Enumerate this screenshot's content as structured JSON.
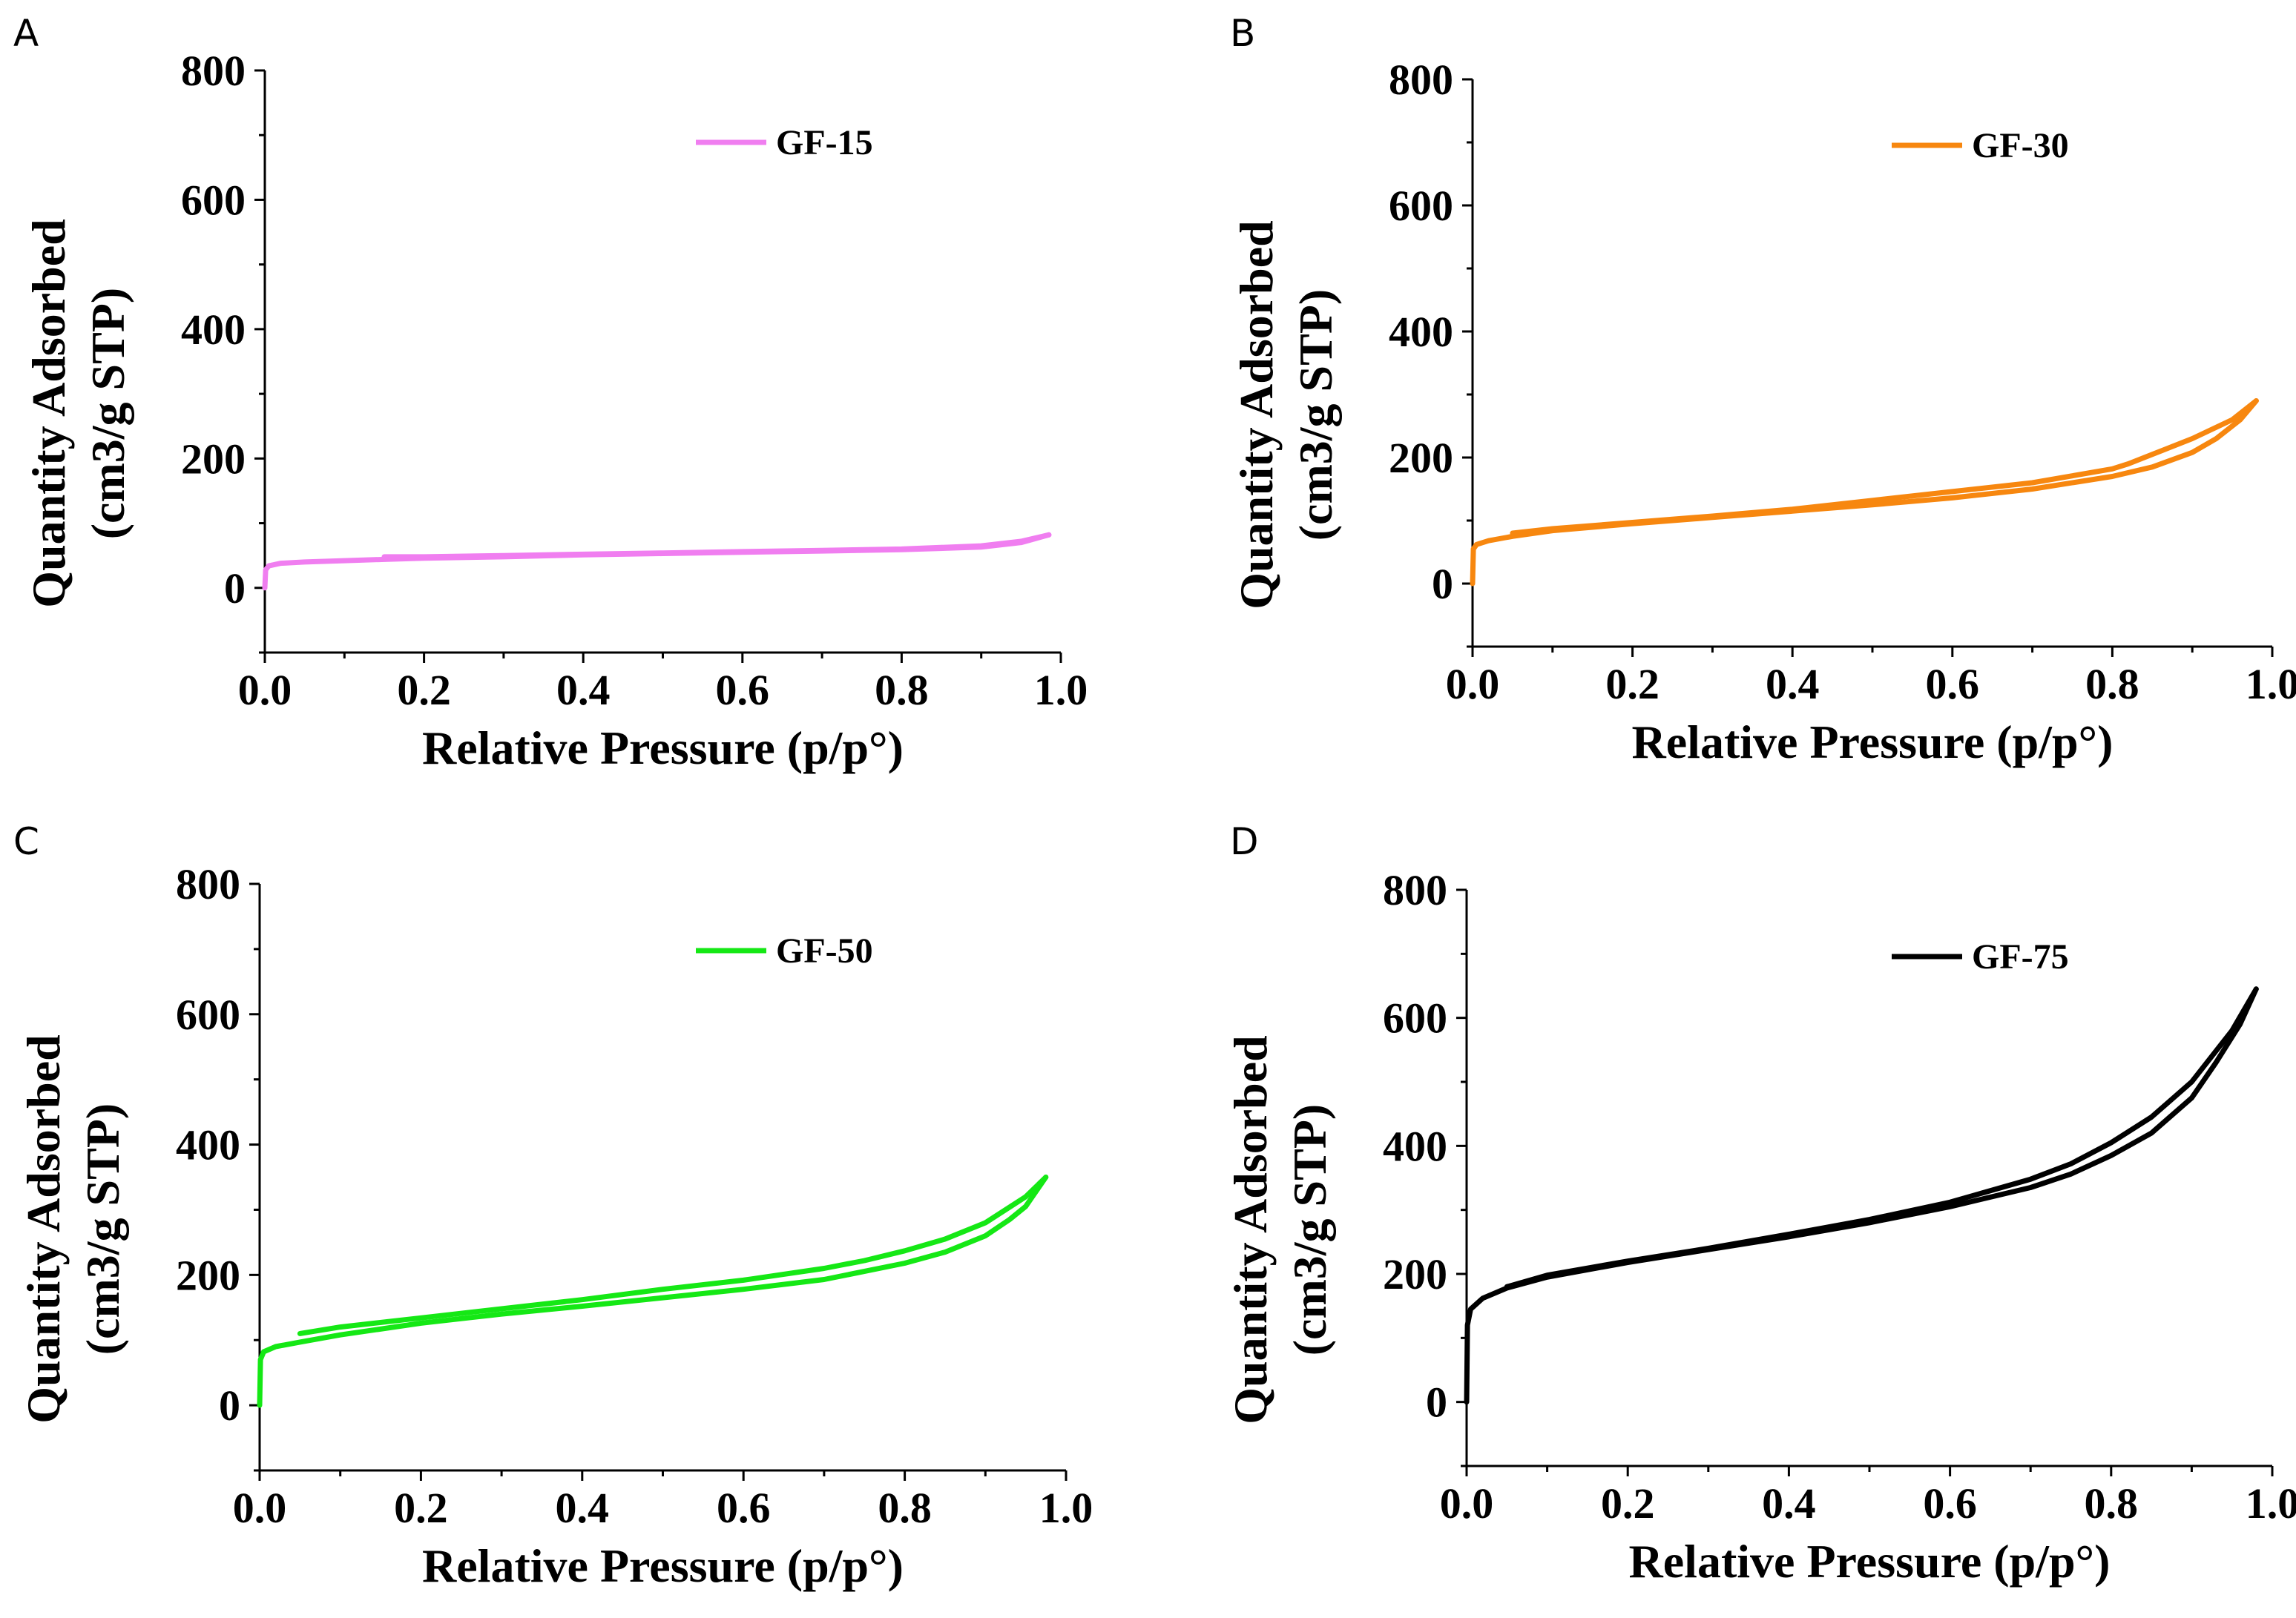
{
  "chart_data": [
    {
      "panel": "A",
      "type": "line",
      "title": "",
      "xlabel": "Relative Pressure (p/p°)",
      "ylabel_lines": [
        "Quantity Adsorbed",
        "(cm3/g STP)"
      ],
      "xlim": [
        0.0,
        1.0
      ],
      "ylim": [
        -100,
        800
      ],
      "xticks": [
        "0.0",
        "0.2",
        "0.4",
        "0.6",
        "0.8",
        "1.0"
      ],
      "yticks": [
        "0",
        "200",
        "400",
        "600",
        "800"
      ],
      "ytick_values": [
        0,
        200,
        400,
        600,
        800
      ],
      "xtick_values": [
        0.0,
        0.2,
        0.4,
        0.6,
        0.8,
        1.0
      ],
      "legend_position": "top-right",
      "color": "#f07ef0",
      "series": [
        {
          "name": "GF-15",
          "adsorption": {
            "x": [
              0.0,
              0.001,
              0.005,
              0.02,
              0.05,
              0.1,
              0.15,
              0.2,
              0.3,
              0.4,
              0.5,
              0.6,
              0.7,
              0.8,
              0.9,
              0.95,
              0.985
            ],
            "y": [
              0,
              28,
              34,
              38,
              40,
              42,
              44,
              46,
              48,
              51,
              53,
              55,
              57,
              59,
              63,
              70,
              82
            ]
          },
          "desorption": {
            "x": [
              0.985,
              0.95,
              0.9,
              0.8,
              0.7,
              0.6,
              0.5,
              0.4,
              0.3,
              0.2,
              0.15
            ],
            "y": [
              82,
              72,
              65,
              60,
              58,
              56,
              54,
              52,
              50,
              48,
              48
            ]
          }
        }
      ]
    },
    {
      "panel": "B",
      "type": "line",
      "title": "",
      "xlabel": "Relative Pressure (p/p°)",
      "ylabel_lines": [
        "Quantity Adsorbed",
        "(cm3/g STP)"
      ],
      "xlim": [
        0.0,
        1.0
      ],
      "ylim": [
        -100,
        800
      ],
      "xticks": [
        "0.0",
        "0.2",
        "0.4",
        "0.6",
        "0.8",
        "1.0"
      ],
      "yticks": [
        "0",
        "200",
        "400",
        "600",
        "800"
      ],
      "ytick_values": [
        0,
        200,
        400,
        600,
        800
      ],
      "xtick_values": [
        0.0,
        0.2,
        0.4,
        0.6,
        0.8,
        1.0
      ],
      "legend_position": "top-right",
      "color": "#f7870f",
      "series": [
        {
          "name": "GF-30",
          "adsorption": {
            "x": [
              0.0,
              0.001,
              0.005,
              0.02,
              0.05,
              0.1,
              0.2,
              0.3,
              0.4,
              0.5,
              0.6,
              0.7,
              0.8,
              0.85,
              0.9,
              0.93,
              0.96,
              0.98
            ],
            "y": [
              0,
              55,
              62,
              68,
              75,
              84,
              95,
              105,
              115,
              125,
              136,
              150,
              170,
              185,
              208,
              230,
              260,
              290
            ]
          },
          "desorption": {
            "x": [
              0.98,
              0.95,
              0.9,
              0.85,
              0.82,
              0.8,
              0.7,
              0.6,
              0.5,
              0.4,
              0.3,
              0.2,
              0.1,
              0.05
            ],
            "y": [
              290,
              260,
              230,
              205,
              190,
              182,
              160,
              146,
              132,
              118,
              107,
              97,
              87,
              80
            ]
          }
        }
      ]
    },
    {
      "panel": "C",
      "type": "line",
      "title": "",
      "xlabel": "Relative Pressure (p/p°)",
      "ylabel_lines": [
        "Quantity Adsorbed",
        "(cm3/g STP)"
      ],
      "xlim": [
        0.0,
        1.0
      ],
      "ylim": [
        -100,
        800
      ],
      "xticks": [
        "0.0",
        "0.2",
        "0.4",
        "0.6",
        "0.8",
        "1.0"
      ],
      "yticks": [
        "0",
        "200",
        "400",
        "600",
        "800"
      ],
      "ytick_values": [
        0,
        200,
        400,
        600,
        800
      ],
      "xtick_values": [
        0.0,
        0.2,
        0.4,
        0.6,
        0.8,
        1.0
      ],
      "legend_position": "top-right",
      "color": "#15e815",
      "series": [
        {
          "name": "GF-50",
          "adsorption": {
            "x": [
              0.0,
              0.001,
              0.005,
              0.02,
              0.05,
              0.1,
              0.2,
              0.3,
              0.4,
              0.5,
              0.6,
              0.7,
              0.8,
              0.85,
              0.9,
              0.93,
              0.95,
              0.975
            ],
            "y": [
              0,
              70,
              82,
              90,
              97,
              108,
              126,
              140,
              152,
              165,
              178,
              193,
              218,
              235,
              260,
              285,
              305,
              350
            ]
          },
          "desorption": {
            "x": [
              0.975,
              0.95,
              0.9,
              0.85,
              0.8,
              0.75,
              0.7,
              0.6,
              0.5,
              0.4,
              0.3,
              0.2,
              0.1,
              0.05
            ],
            "y": [
              350,
              320,
              280,
              255,
              237,
              222,
              210,
              192,
              178,
              162,
              148,
              134,
              120,
              110
            ]
          }
        }
      ]
    },
    {
      "panel": "D",
      "type": "line",
      "title": "",
      "xlabel": "Relative Pressure (p/p°)",
      "ylabel_lines": [
        "Quantity Adsorbed",
        "(cm3/g STP)"
      ],
      "xlim": [
        0.0,
        1.0
      ],
      "ylim": [
        -100,
        800
      ],
      "xticks": [
        "0.0",
        "0.2",
        "0.4",
        "0.6",
        "0.8",
        "1.0"
      ],
      "yticks": [
        "0",
        "200",
        "400",
        "600",
        "800"
      ],
      "ytick_values": [
        0,
        200,
        400,
        600,
        800
      ],
      "xtick_values": [
        0.0,
        0.2,
        0.4,
        0.6,
        0.8,
        1.0
      ],
      "legend_position": "top-right",
      "color": "#000000",
      "series": [
        {
          "name": "GF-75",
          "adsorption": {
            "x": [
              0.0,
              0.001,
              0.005,
              0.02,
              0.05,
              0.1,
              0.2,
              0.3,
              0.4,
              0.5,
              0.6,
              0.7,
              0.75,
              0.8,
              0.85,
              0.9,
              0.93,
              0.96,
              0.98
            ],
            "y": [
              0,
              120,
              145,
              162,
              178,
              195,
              218,
              238,
              258,
              280,
              305,
              335,
              356,
              385,
              420,
              475,
              530,
              590,
              645
            ]
          },
          "desorption": {
            "x": [
              0.98,
              0.95,
              0.9,
              0.85,
              0.8,
              0.75,
              0.7,
              0.6,
              0.5,
              0.4,
              0.3,
              0.2,
              0.1,
              0.05
            ],
            "y": [
              645,
              580,
              500,
              445,
              405,
              372,
              348,
              312,
              285,
              262,
              240,
              220,
              198,
              180
            ]
          }
        }
      ]
    }
  ]
}
